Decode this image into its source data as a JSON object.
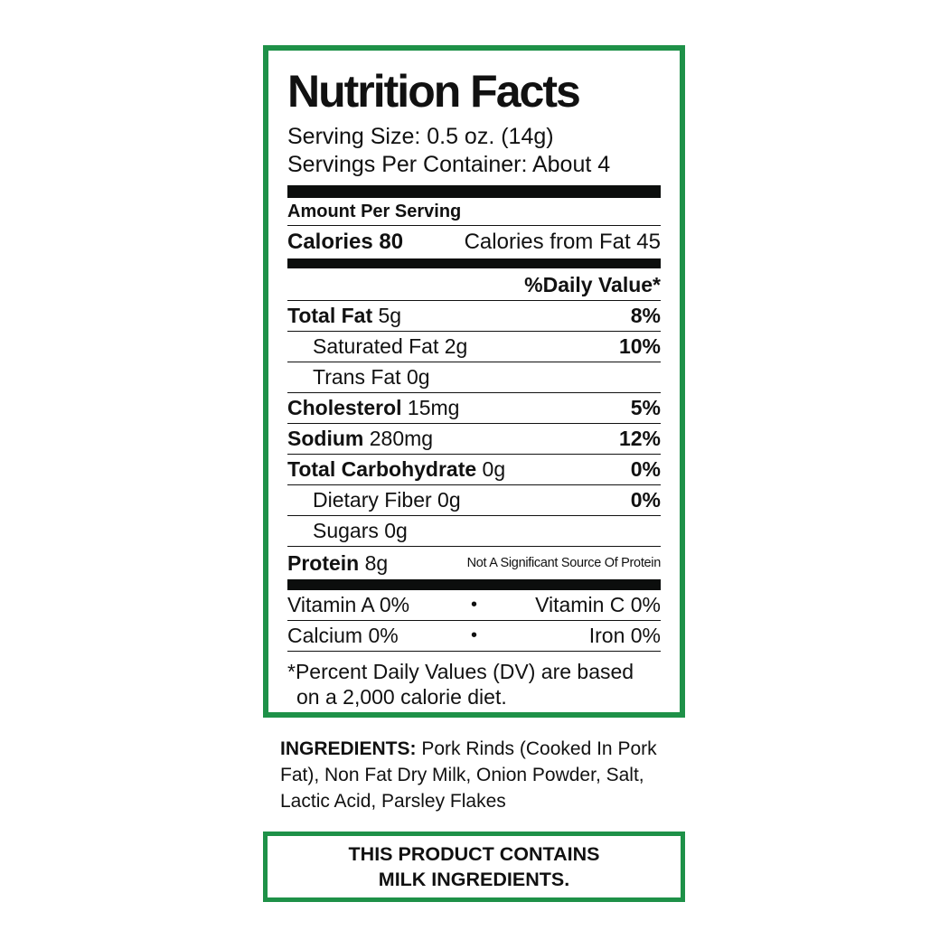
{
  "colors": {
    "border_green": "#1e9148",
    "bar_black": "#0c0e0d",
    "text": "#111111"
  },
  "label": {
    "title": "Nutrition Facts",
    "serving_size": "Serving Size: 0.5 oz. (14g)",
    "servings_per_container": "Servings Per Container: About 4",
    "amount_per_serving": "Amount Per Serving",
    "calories": "Calories 80",
    "calories_from_fat": "Calories from Fat 45",
    "daily_value_header": "%Daily Value*",
    "rows": [
      {
        "label": "Total Fat",
        "amount": "5g",
        "dv": "8%"
      },
      {
        "label": "Saturated Fat",
        "amount": "2g",
        "dv": "10%"
      },
      {
        "label": "Trans Fat",
        "amount": "0g",
        "dv": ""
      },
      {
        "label": "Cholesterol",
        "amount": "15mg",
        "dv": "5%"
      },
      {
        "label": "Sodium",
        "amount": "280mg",
        "dv": "12%"
      },
      {
        "label": "Total Carbohydrate",
        "amount": "0g",
        "dv": "0%"
      },
      {
        "label": "Dietary Fiber",
        "amount": "0g",
        "dv": "0%"
      },
      {
        "label": "Sugars",
        "amount": "0g",
        "dv": ""
      },
      {
        "label": "Protein",
        "amount": "8g",
        "note": "Not A Significant Source Of Protein"
      }
    ],
    "vitamins": [
      {
        "left": "Vitamin A 0%",
        "bullet": "•",
        "right": "Vitamin C 0%"
      },
      {
        "left": "Calcium 0%",
        "bullet": "•",
        "right": "Iron 0%"
      }
    ],
    "footnote_line1": "*Percent Daily Values (DV) are based",
    "footnote_line2": "on a 2,000 calorie diet."
  },
  "ingredients": {
    "heading": "INGREDIENTS:",
    "text": " Pork Rinds (Cooked In Pork Fat), Non Fat Dry Milk, Onion Powder, Salt, Lactic Acid, Parsley Flakes"
  },
  "allergen": {
    "line1": "THIS PRODUCT CONTAINS",
    "line2": "MILK INGREDIENTS."
  }
}
